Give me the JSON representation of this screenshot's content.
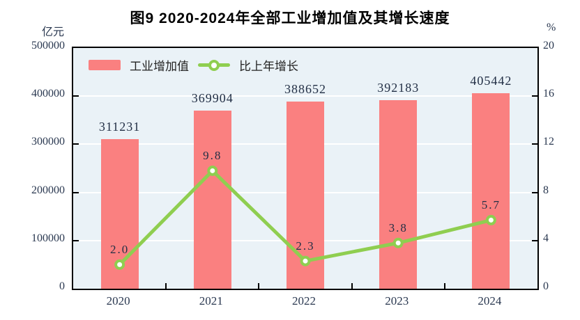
{
  "chart_data": {
    "type": "combo",
    "title": "图9  2020-2024年全部工业增加值及其增长速度",
    "categories": [
      "2020",
      "2021",
      "2022",
      "2023",
      "2024"
    ],
    "series": [
      {
        "name": "工业增加值",
        "type": "bar",
        "axis": "left",
        "color": "#FA8080",
        "values": [
          311231,
          369904,
          388652,
          392183,
          405442
        ],
        "labels": [
          "311231",
          "369904",
          "388652",
          "392183",
          "405442"
        ]
      },
      {
        "name": "比上年增长",
        "type": "line",
        "axis": "right",
        "color": "#8FCE50",
        "marker": "circle-white-fill",
        "values": [
          2.0,
          9.8,
          2.3,
          3.8,
          5.7
        ],
        "labels": [
          "2.0",
          "9.8",
          "2.3",
          "3.8",
          "5.7"
        ]
      }
    ],
    "left_axis": {
      "unit": "亿元",
      "min": 0,
      "max": 500000,
      "ticks": [
        0,
        100000,
        200000,
        300000,
        400000,
        500000
      ]
    },
    "right_axis": {
      "unit": "%",
      "min": 0,
      "max": 20,
      "ticks": [
        0,
        4,
        8,
        12,
        16,
        20
      ]
    },
    "grid": true,
    "plot_background": "#EAF2F7",
    "gridline_color": "#ffffff",
    "legend_position": "top-left-inside"
  }
}
